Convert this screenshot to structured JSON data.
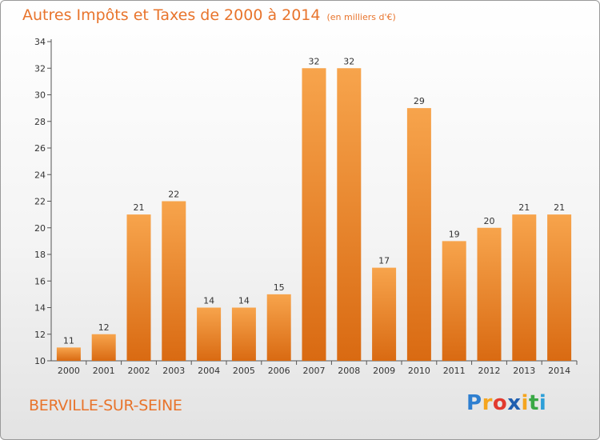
{
  "chart_data": {
    "type": "bar",
    "title": "Autres Impôts et Taxes de 2000 à 2014",
    "subtitle": "(en milliers d'€)",
    "categories": [
      "2000",
      "2001",
      "2002",
      "2003",
      "2004",
      "2005",
      "2006",
      "2007",
      "2008",
      "2009",
      "2010",
      "2011",
      "2012",
      "2013",
      "2014"
    ],
    "values": [
      11,
      12,
      21,
      22,
      14,
      14,
      15,
      32,
      32,
      17,
      29,
      19,
      20,
      21,
      21
    ],
    "ylim": [
      10,
      34
    ],
    "yticks": [
      10,
      12,
      14,
      16,
      18,
      20,
      22,
      24,
      26,
      28,
      30,
      32,
      34
    ],
    "xlabel": "",
    "ylabel": "",
    "grid": false,
    "bar_color": "#f0882c"
  },
  "location": "BERVILLE-SUR-SEINE",
  "logo": {
    "letters": [
      "P",
      "r",
      "o",
      "x",
      "i",
      "t",
      "i"
    ],
    "colors": [
      "#2e7fd0",
      "#f5a51e",
      "#e23a2e",
      "#1f5fb0",
      "#f5a51e",
      "#3aa845",
      "#2e9fd8"
    ]
  }
}
